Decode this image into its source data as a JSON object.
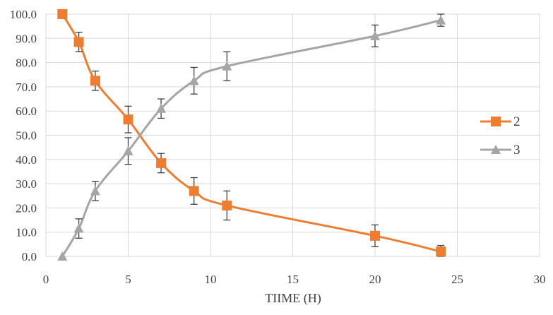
{
  "chart_data": {
    "type": "line",
    "title": "",
    "xlabel": "TIIME (H)",
    "ylabel": "",
    "xlim": [
      0,
      30
    ],
    "ylim": [
      0,
      100
    ],
    "xticks": [
      "0",
      "5",
      "10",
      "15",
      "20",
      "25",
      "30"
    ],
    "yticks": [
      "0.0",
      "10.0",
      "20.0",
      "30.0",
      "40.0",
      "50.0",
      "60.0",
      "70.0",
      "80.0",
      "90.0",
      "100.0"
    ],
    "grid": true,
    "legend_position": "right",
    "series": [
      {
        "name": "2",
        "color": "#ED7D31",
        "marker": "square",
        "x": [
          1,
          2,
          3,
          5,
          7,
          9,
          11,
          20,
          24
        ],
        "y": [
          100,
          88.5,
          72.5,
          56.5,
          38.5,
          27,
          21,
          8.5,
          2
        ],
        "error": [
          0,
          4,
          4,
          5.5,
          4,
          5.5,
          6,
          4.5,
          2.5
        ]
      },
      {
        "name": "3",
        "color": "#A5A5A5",
        "marker": "triangle",
        "x": [
          1,
          2,
          3,
          5,
          7,
          9,
          11,
          20,
          24
        ],
        "y": [
          0,
          11.5,
          27,
          43.5,
          61,
          72.5,
          78.5,
          91,
          97.5
        ],
        "error": [
          0,
          4,
          4,
          5.5,
          4,
          5.5,
          6,
          4.5,
          2.5
        ]
      }
    ]
  }
}
